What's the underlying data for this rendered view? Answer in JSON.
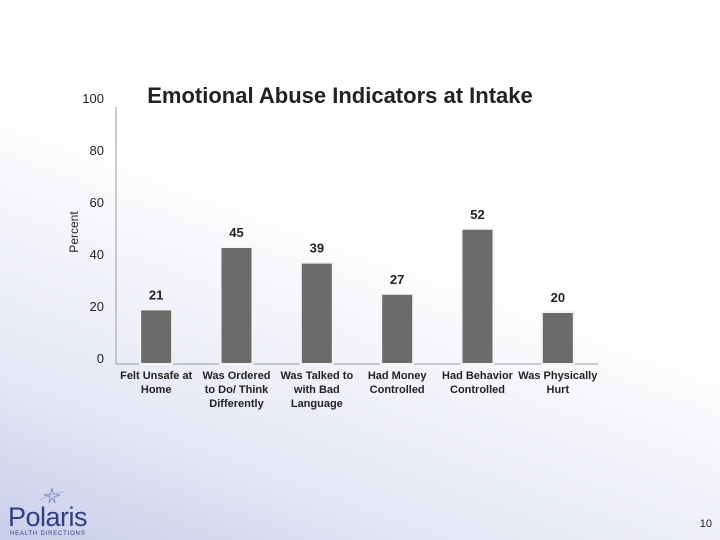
{
  "chart_data": {
    "type": "bar",
    "title": "Emotional Abuse Indicators at Intake",
    "xlabel": "",
    "ylabel": "Percent",
    "ylim": [
      0,
      100
    ],
    "yticks": [
      0,
      20,
      40,
      60,
      80,
      100
    ],
    "categories": [
      [
        "Felt Unsafe at",
        "Home"
      ],
      [
        "Was Ordered",
        "to Do/ Think",
        "Differently"
      ],
      [
        "Was Talked to",
        "with Bad",
        "Language"
      ],
      [
        "Had Money",
        "Controlled"
      ],
      [
        "Had Behavior",
        "Controlled"
      ],
      [
        "Was Physically",
        "Hurt"
      ]
    ],
    "values": [
      21,
      45,
      39,
      27,
      52,
      20
    ],
    "grid": false,
    "legend": "none",
    "bar_color": "#6b6b6b"
  },
  "logo": {
    "name": "Polaris",
    "tagline": "HEALTH DIRECTIONS"
  },
  "page_number": "10"
}
